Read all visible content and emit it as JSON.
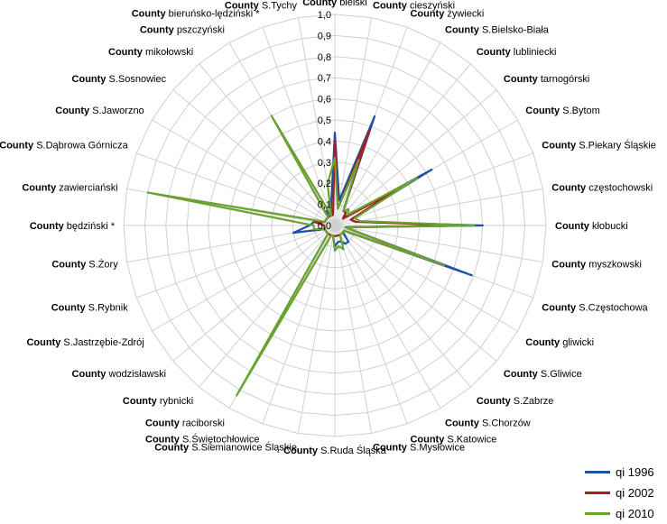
{
  "chart_data": {
    "type": "radar",
    "categories": [
      "bielski",
      "cieszyński",
      "żywiecki",
      "S.Bielsko-Biała",
      "lubliniecki",
      "tarnogórski",
      "S.Bytom",
      "S.Piekary Śląskie",
      "częstochowski",
      "kłobucki",
      "myszkowski",
      "S.Częstochowa",
      "gliwicki",
      "S.Gliwice",
      "S.Zabrze",
      "S.Chorzów",
      "S.Katowice",
      "S.Mysłowice",
      "S.Ruda Śląska",
      "S.Siemianowice Śląskie",
      "S.Świętochłowice",
      "raciborski",
      "rybnicki",
      "wodzisławski",
      "S.Jastrzębie-Zdrój",
      "S.Rybnik",
      "S.Żory",
      "będziński *",
      "zawierciański",
      "S.Dąbrowa Górnicza",
      "S.Jaworzno",
      "S.Sosnowiec",
      "mikołowski",
      "pszczyński",
      "bieruńsko-lędziński *",
      "S.Tychy"
    ],
    "category_prefix": "County",
    "r_ticks": [
      "0,0",
      "0,1",
      "0,2",
      "0,3",
      "0,4",
      "0,5",
      "0,6",
      "0,7",
      "0,8",
      "0,9",
      "1,0"
    ],
    "rlim": [
      0,
      1
    ],
    "series": [
      {
        "name": "qi 1996",
        "color": "#1f4fa8",
        "values": [
          0.44,
          0.12,
          0.55,
          0.08,
          0.08,
          0.06,
          0.53,
          0.08,
          0.1,
          0.7,
          0.05,
          0.69,
          0.05,
          0.05,
          0.1,
          0.1,
          0.08,
          0.08,
          0.1,
          0.05,
          0.05,
          0.05,
          0.05,
          0.05,
          0.05,
          0.05,
          0.2,
          0.12,
          0.1,
          0.05,
          0.05,
          0.05,
          0.05,
          0.08,
          0.05,
          0.1
        ]
      },
      {
        "name": "qi  2002",
        "color": "#a41f1f",
        "values": [
          0.4,
          0.08,
          0.48,
          0.08,
          0.08,
          0.05,
          0.33,
          0.08,
          0.1,
          0.6,
          0.05,
          0.55,
          0.05,
          0.05,
          0.05,
          0.05,
          0.05,
          0.05,
          0.05,
          0.05,
          0.05,
          0.05,
          0.05,
          0.05,
          0.05,
          0.05,
          0.05,
          0.05,
          0.1,
          0.05,
          0.05,
          0.05,
          0.05,
          0.05,
          0.05,
          0.05
        ]
      },
      {
        "name": "qi 2010",
        "color": "#6aa232",
        "values": [
          0.32,
          0.08,
          0.33,
          0.08,
          0.1,
          0.08,
          0.45,
          0.1,
          0.12,
          0.66,
          0.05,
          0.55,
          0.05,
          0.05,
          0.05,
          0.05,
          0.12,
          0.1,
          0.12,
          0.05,
          0.05,
          0.93,
          0.05,
          0.05,
          0.05,
          0.05,
          0.1,
          0.1,
          0.9,
          0.05,
          0.05,
          0.05,
          0.05,
          0.6,
          0.05,
          0.2
        ]
      }
    ],
    "legend_position": "bottom-right",
    "grid": true
  }
}
